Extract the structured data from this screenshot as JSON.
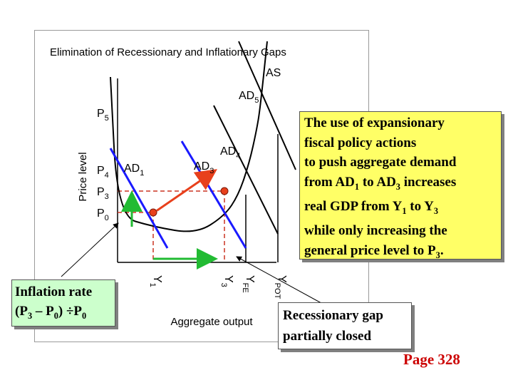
{
  "chart_data": {
    "type": "line",
    "title": "Elimination of Recessionary and Inflationary Gaps",
    "xlabel": "Aggregate output",
    "ylabel": "Price level",
    "grid": false,
    "x_ticks": [
      {
        "id": "y1",
        "base": "Y",
        "sub": "1",
        "value": 1.0
      },
      {
        "id": "y3",
        "base": "Y",
        "sub": "3",
        "value": 3.0
      },
      {
        "id": "yfe",
        "base": "Y",
        "sub": "FE",
        "value": 3.6
      },
      {
        "id": "ypot",
        "base": "Y",
        "sub": "POT",
        "value": 4.5
      }
    ],
    "y_ticks": [
      {
        "id": "p0",
        "base": "P",
        "sub": "0",
        "value": 0.4
      },
      {
        "id": "p3",
        "base": "P",
        "sub": "3",
        "value": 1.0
      },
      {
        "id": "p4",
        "base": "P",
        "sub": "4",
        "value": 1.6
      },
      {
        "id": "p5",
        "base": "P",
        "sub": "5",
        "value": 3.2
      }
    ],
    "curves": [
      {
        "id": "as",
        "label": "AS",
        "base": "AS",
        "sub": "",
        "color": "#000000",
        "points": [
          [
            -0.2,
            4.2
          ],
          [
            0,
            0.3
          ],
          [
            1.0,
            0.0
          ],
          [
            2.2,
            -0.2
          ],
          [
            3.0,
            0.3
          ],
          [
            3.4,
            0.9
          ],
          [
            3.7,
            1.8
          ],
          [
            3.9,
            2.7
          ],
          [
            4.0,
            3.3
          ],
          [
            4.2,
            5.2
          ]
        ]
      },
      {
        "id": "ad1",
        "label": "AD1",
        "base": "AD",
        "sub": "1",
        "color": "#1a1aff",
        "points": [
          [
            -0.2,
            2.2
          ],
          [
            1.4,
            -0.6
          ]
        ]
      },
      {
        "id": "ad3",
        "label": "AD3",
        "base": "AD",
        "sub": "3",
        "color": "#1a1aff",
        "points": [
          [
            1.8,
            2.4
          ],
          [
            3.6,
            -0.6
          ]
        ]
      },
      {
        "id": "ad4",
        "label": "AD4",
        "base": "AD",
        "sub": "4",
        "color": "#000000",
        "points": [
          [
            2.7,
            3.4
          ],
          [
            4.5,
            -0.2
          ]
        ]
      },
      {
        "id": "ad5",
        "label": "AD5",
        "base": "AD",
        "sub": "5",
        "color": "#000000",
        "points": [
          [
            3.4,
            5.2
          ],
          [
            5.0,
            1.6
          ]
        ]
      }
    ],
    "equilibria": [
      {
        "id": "e1",
        "x": 1.0,
        "y": 0.4
      },
      {
        "id": "e3",
        "x": 3.0,
        "y": 1.0
      }
    ],
    "arrows": [
      {
        "id": "ad-shift-arrow",
        "color": "#e8401c",
        "from": [
          1.1,
          0.45
        ],
        "to": [
          2.7,
          1.55
        ]
      },
      {
        "id": "output-gain-arrow",
        "color": "#22bb33",
        "from": [
          1.0,
          -0.9
        ],
        "to": [
          2.7,
          -0.9
        ]
      },
      {
        "id": "price-rise-arrow",
        "color": "#22bb33",
        "from": [
          0.4,
          0.0
        ],
        "to": [
          0.4,
          0.9
        ]
      }
    ],
    "legend": "none"
  },
  "annotations": {
    "fiscal_box": [
      [
        {
          "t": "The use of expansionary"
        }
      ],
      [
        {
          "t": "fiscal policy actions"
        }
      ],
      [
        {
          "t": "to push aggregate demand"
        }
      ],
      [
        {
          "t": "from AD"
        },
        {
          "t": "1",
          "sub": true
        },
        {
          "t": " to AD"
        },
        {
          "t": "3",
          "sub": true
        },
        {
          "t": " increases"
        }
      ],
      [
        {
          "t": "real GDP from Y"
        },
        {
          "t": "1",
          "sub": true
        },
        {
          "t": " to Y"
        },
        {
          "t": "3",
          "sub": true
        }
      ],
      [
        {
          "t": "while only increasing the"
        }
      ],
      [
        {
          "t": "general price level to P"
        },
        {
          "t": "3",
          "sub": true
        },
        {
          "t": "."
        }
      ]
    ],
    "inflation_box": [
      [
        {
          "t": "Inflation rate"
        }
      ],
      [
        {
          "t": "(P"
        },
        {
          "t": "3",
          "sub": true
        },
        {
          "t": " – P"
        },
        {
          "t": "0",
          "sub": true
        },
        {
          "t": ") ÷P"
        },
        {
          "t": "0",
          "sub": true
        }
      ]
    ],
    "recess_box": [
      [
        {
          "t": "Recessionary gap"
        }
      ],
      [
        {
          "t": "partially closed"
        }
      ]
    ],
    "page_ref": "Page 328"
  },
  "colors": {
    "ad_blue": "#1a1aff",
    "shift_arrow": "#e8401c",
    "gain_arrow": "#22bb33",
    "dashed": "#cc3322",
    "fiscal_box_bg": "#ffff66",
    "inflation_box_bg": "#ccffcc",
    "page_ref": "#cc0000"
  }
}
